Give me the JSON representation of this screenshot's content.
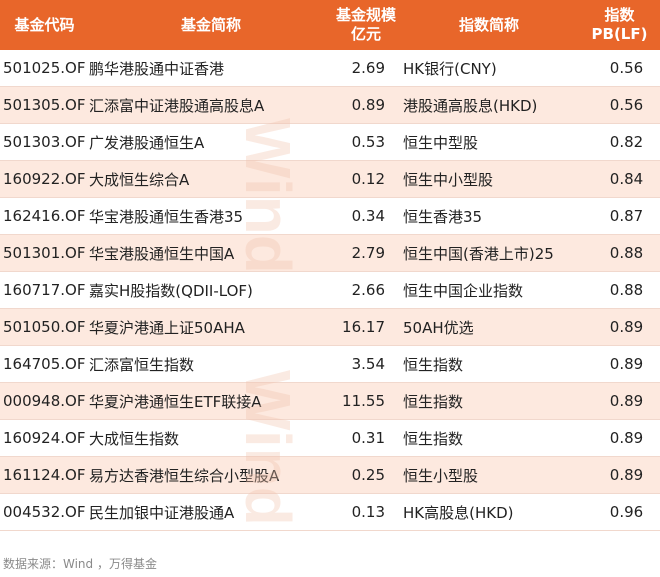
{
  "header": {
    "col_code": "基金代码",
    "col_name": "基金简称",
    "col_size_line1": "基金规模",
    "col_size_line2": "亿元",
    "col_index": "指数简称",
    "col_pb_line1": "指数",
    "col_pb_line2": "PB(LF)"
  },
  "rows": [
    {
      "code": "501025.OF",
      "name": "鹏华港股通中证香港",
      "size": "2.69",
      "index": "HK银行(CNY)",
      "pb": "0.56"
    },
    {
      "code": "501305.OF",
      "name": "汇添富中证港股通高股息A",
      "size": "0.89",
      "index": "港股通高股息(HKD)",
      "pb": "0.56"
    },
    {
      "code": "501303.OF",
      "name": "广发港股通恒生A",
      "size": "0.53",
      "index": "恒生中型股",
      "pb": "0.82"
    },
    {
      "code": "160922.OF",
      "name": "大成恒生综合A",
      "size": "0.12",
      "index": "恒生中小型股",
      "pb": "0.84"
    },
    {
      "code": "162416.OF",
      "name": "华宝港股通恒生香港35",
      "size": "0.34",
      "index": "恒生香港35",
      "pb": "0.87"
    },
    {
      "code": "501301.OF",
      "name": "华宝港股通恒生中国A",
      "size": "2.79",
      "index": "恒生中国(香港上市)25",
      "pb": "0.88"
    },
    {
      "code": "160717.OF",
      "name": "嘉实H股指数(QDII-LOF)",
      "size": "2.66",
      "index": "恒生中国企业指数",
      "pb": "0.88"
    },
    {
      "code": "501050.OF",
      "name": "华夏沪港通上证50AHA",
      "size": "16.17",
      "index": "50AH优选",
      "pb": "0.89"
    },
    {
      "code": "164705.OF",
      "name": "汇添富恒生指数",
      "size": "3.54",
      "index": "恒生指数",
      "pb": "0.89"
    },
    {
      "code": "000948.OF",
      "name": "华夏沪港通恒生ETF联接A",
      "size": "11.55",
      "index": "恒生指数",
      "pb": "0.89"
    },
    {
      "code": "160924.OF",
      "name": "大成恒生指数",
      "size": "0.31",
      "index": "恒生指数",
      "pb": "0.89"
    },
    {
      "code": "161124.OF",
      "name": "易方达香港恒生综合小型股A",
      "size": "0.25",
      "index": "恒生小型股",
      "pb": "0.89"
    },
    {
      "code": "004532.OF",
      "name": "民生加银中证港股通A",
      "size": "0.13",
      "index": "HK高股息(HKD)",
      "pb": "0.96"
    }
  ],
  "watermark": "Wind",
  "footer": "数据来源：Wind ，万得基金",
  "colors": {
    "header_bg": "#e8662a",
    "stripe_bg": "#fde9df"
  }
}
